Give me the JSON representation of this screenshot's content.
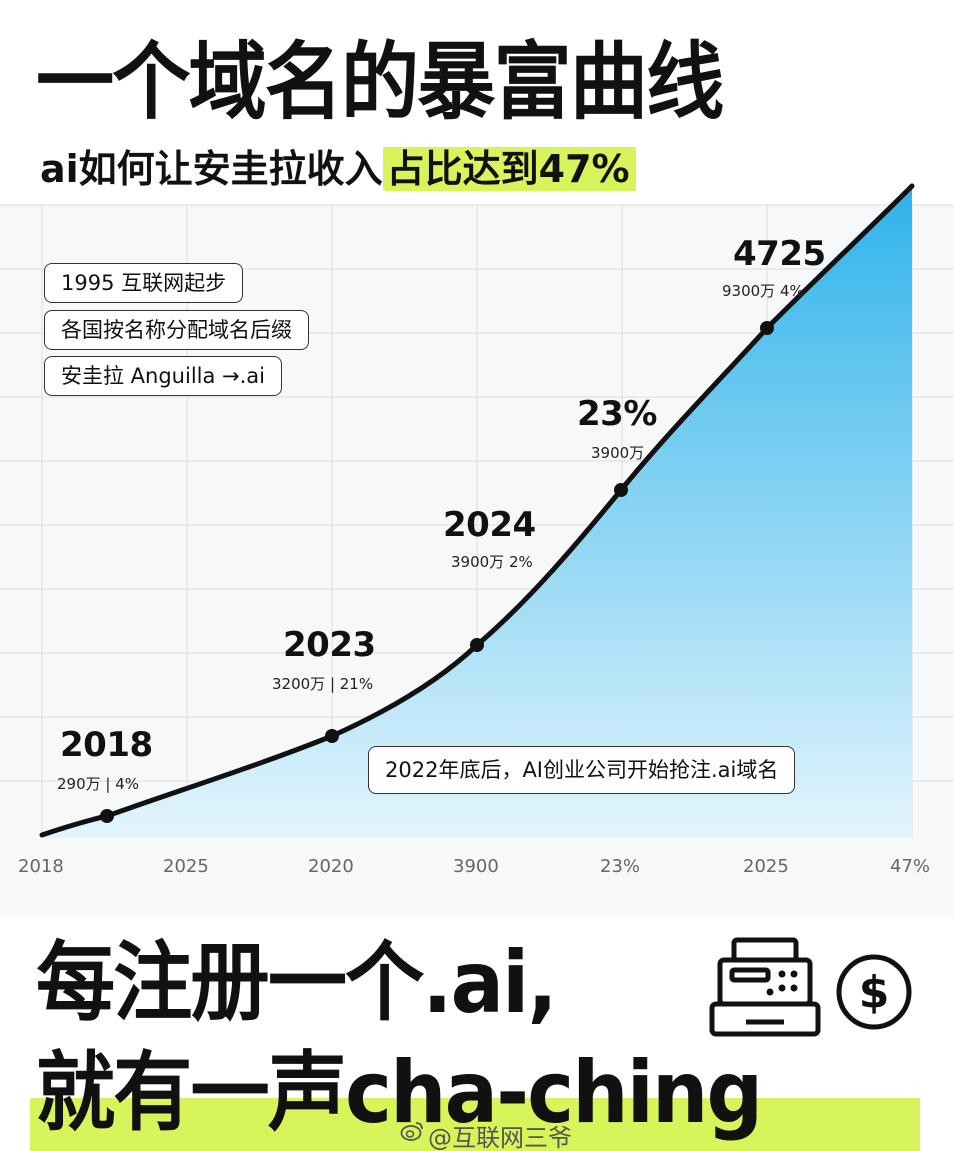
{
  "title": "一个域名的暴富曲线",
  "subtitle": {
    "prefix": "ai如何让安圭拉收入",
    "highlight": "占比达到47%"
  },
  "notes": [
    "1995 互联网起步",
    "各国按名称分配域名后缀",
    "安圭拉 Anguilla →.ai"
  ],
  "annotation": "2022年底后，AI创业公司开始抢注.ai域名",
  "chart_data": {
    "type": "area",
    "x_tick_labels": [
      "2018",
      "2025",
      "2020",
      "3900",
      "23%",
      "2025",
      "47%"
    ],
    "points": [
      {
        "label": "2018",
        "detail": "290万 | 4%"
      },
      {
        "label": "2023",
        "detail": "3200万 | 21%"
      },
      {
        "label": "2024",
        "detail": "3900万 2%"
      },
      {
        "label": "23%",
        "detail": "3900万"
      },
      {
        "label": "4725",
        "detail": "9300万 4%"
      }
    ],
    "grid": true,
    "colors": {
      "line": "#111111",
      "fill_top": "#35b7ec",
      "fill_bottom": "#dff3fc"
    }
  },
  "slogan": {
    "line1": "每注册一个.ai,",
    "line2": "就有一声cha-ching"
  },
  "icons": [
    "cash-register-icon",
    "dollar-coin-icon",
    "weibo-icon"
  ],
  "watermark": "@互联网三爷",
  "colors": {
    "highlight": "#d7f55a",
    "background": "#ffffff",
    "chart_bg": "#f7f8fa"
  }
}
